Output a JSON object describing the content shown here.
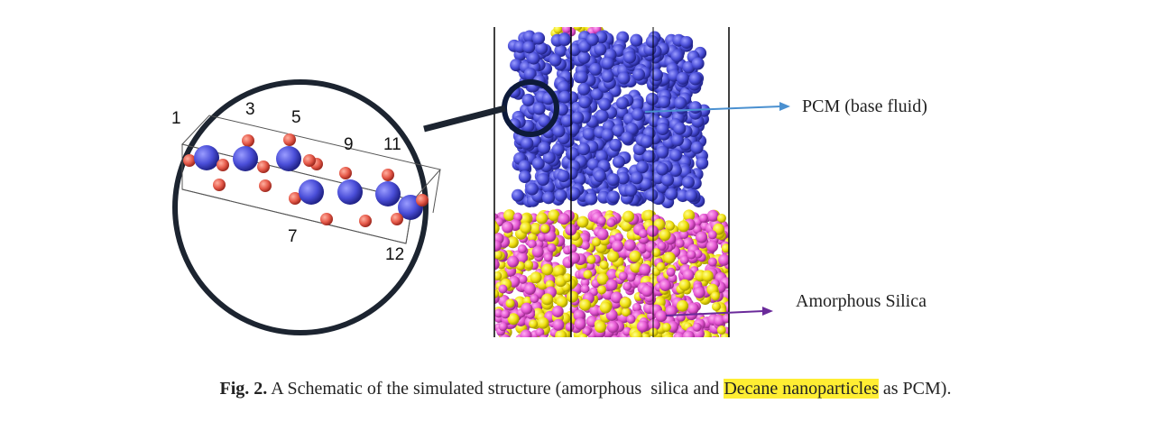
{
  "figure": {
    "atom_labels": [
      "1",
      "3",
      "5",
      "9",
      "11",
      "7",
      "12"
    ],
    "pcm_label": "PCM (base fluid)",
    "silica_label": "Amorphous  Silica",
    "caption": {
      "label": "Fig. 2.",
      "text_before": " A Schematic of the simulated structure (amorphous  silica and ",
      "highlighted": "Decane nanoparticles",
      "text_after": " as PCM)."
    }
  }
}
